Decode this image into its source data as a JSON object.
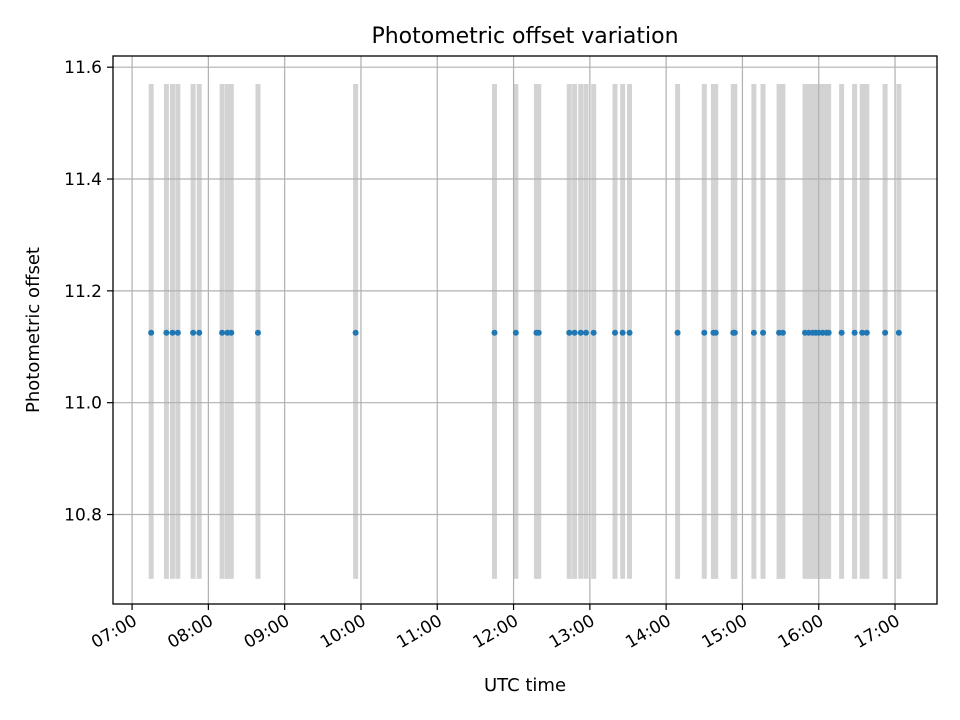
{
  "chart_data": {
    "type": "scatter",
    "title": "Photometric offset variation",
    "xlabel": "UTC time",
    "ylabel": "Photometric offset",
    "x_unit": "hours UTC",
    "xlim": [
      6.75,
      17.55
    ],
    "ylim": [
      10.64,
      11.62
    ],
    "x_ticks": [
      7,
      8,
      9,
      10,
      11,
      12,
      13,
      14,
      15,
      16,
      17
    ],
    "x_tick_labels": [
      "07:00",
      "08:00",
      "09:00",
      "10:00",
      "11:00",
      "12:00",
      "13:00",
      "14:00",
      "15:00",
      "16:00",
      "17:00"
    ],
    "y_ticks": [
      10.8,
      11.0,
      11.2,
      11.4,
      11.6
    ],
    "y_tick_labels": [
      "10.8",
      "11.0",
      "11.2",
      "11.4",
      "11.6"
    ],
    "grid": true,
    "colors": {
      "points": "#1f77b4",
      "bands": "#d3d3d3",
      "grid": "#b0b0b0"
    },
    "band_range": [
      10.685,
      11.57
    ],
    "series": [
      {
        "type": "scatter",
        "y_constant": 11.125,
        "x": [
          7.25,
          7.45,
          7.53,
          7.6,
          7.8,
          7.88,
          8.18,
          8.25,
          8.3,
          8.65,
          9.93,
          11.75,
          12.03,
          12.3,
          12.33,
          12.73,
          12.8,
          12.88,
          12.95,
          13.05,
          13.33,
          13.43,
          13.52,
          14.15,
          14.5,
          14.62,
          14.65,
          14.88,
          14.9,
          15.15,
          15.27,
          15.48,
          15.53,
          15.82,
          15.87,
          15.92,
          15.96,
          16.0,
          16.05,
          16.1,
          16.13,
          16.3,
          16.47,
          16.57,
          16.63,
          16.87,
          17.05
        ]
      },
      {
        "type": "bands",
        "x": [
          7.25,
          7.45,
          7.53,
          7.6,
          7.8,
          7.88,
          8.18,
          8.25,
          8.3,
          8.65,
          9.93,
          11.75,
          12.03,
          12.3,
          12.33,
          12.73,
          12.8,
          12.88,
          12.95,
          13.05,
          13.33,
          13.43,
          13.52,
          14.15,
          14.5,
          14.62,
          14.65,
          14.88,
          14.9,
          15.15,
          15.27,
          15.48,
          15.53,
          15.82,
          15.87,
          15.92,
          15.96,
          16.0,
          16.05,
          16.1,
          16.13,
          16.3,
          16.47,
          16.57,
          16.63,
          16.87,
          17.05
        ]
      }
    ]
  }
}
